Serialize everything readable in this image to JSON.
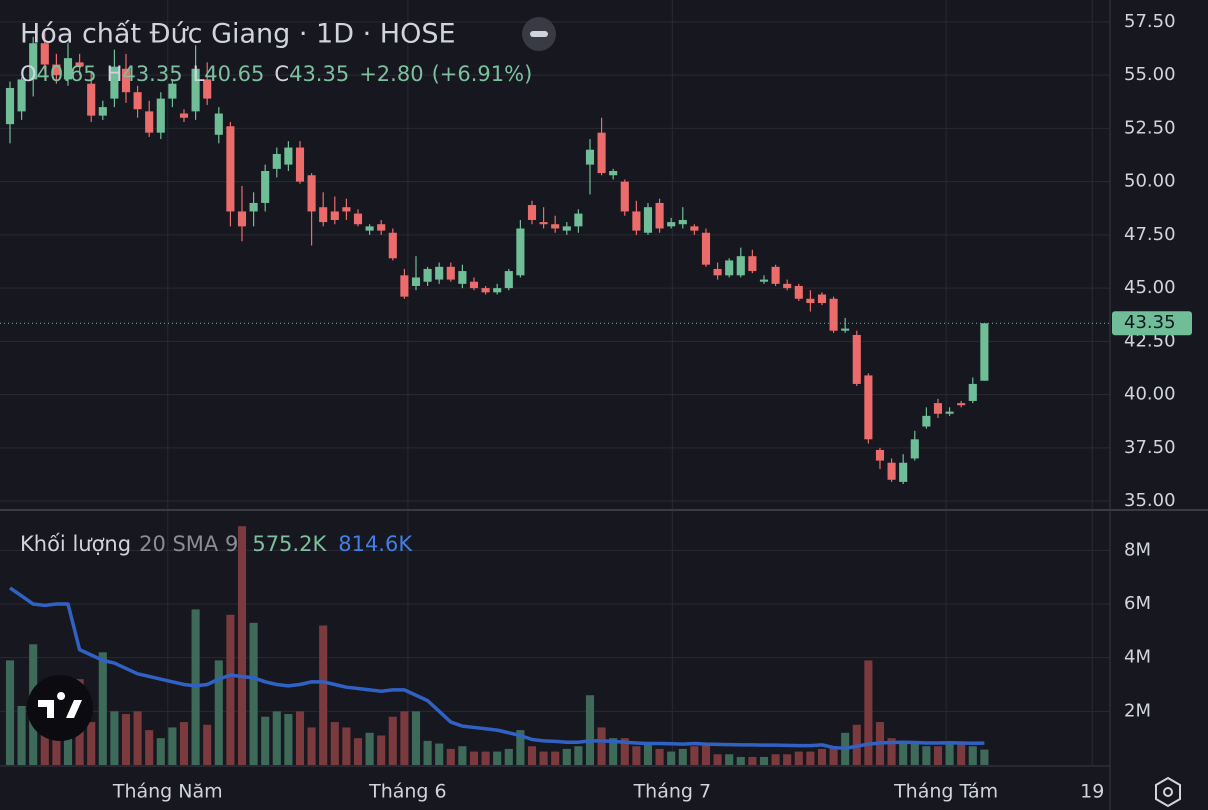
{
  "chart_data": [
    {
      "type": "candlestick",
      "title": "Hóa chất Đức Giang · 1D · HOSE",
      "legend": {
        "open_label": "O",
        "high_label": "H",
        "low_label": "L",
        "close_label": "C",
        "change": "+2.80",
        "change_pct": "(+6.91%)"
      },
      "open": [
        52.7,
        53.3,
        54.8,
        56.5,
        55.5,
        54.8,
        55.6,
        54.6,
        53.1,
        53.9,
        55.3,
        54.2,
        53.3,
        52.3,
        53.9,
        53.2,
        53.3,
        54.8,
        52.2,
        52.6,
        48.6,
        48.6,
        49.0,
        50.6,
        50.8,
        51.6,
        50.3,
        48.8,
        48.6,
        48.8,
        48.5,
        47.7,
        48.0,
        47.6,
        45.6,
        45.1,
        45.3,
        45.4,
        46.0,
        45.2,
        45.3,
        45.0,
        44.8,
        45.0,
        45.6,
        48.9,
        48.1,
        48.0,
        47.7,
        47.9,
        50.8,
        52.3,
        50.3,
        50.0,
        48.6,
        47.6,
        49.0,
        47.9,
        48.0,
        47.9,
        47.6,
        45.9,
        45.6,
        45.6,
        46.5,
        45.3,
        46.0,
        45.2,
        45.1,
        44.5,
        44.7,
        44.5,
        43.0,
        42.8,
        40.9,
        37.4,
        36.8,
        35.9,
        37.0,
        38.5,
        39.6,
        39.1,
        39.6,
        39.7,
        40.65
      ],
      "high": [
        54.7,
        54.9,
        56.8,
        57.0,
        56.0,
        56.5,
        56.0,
        55.2,
        53.8,
        56.2,
        56.0,
        54.5,
        53.8,
        54.2,
        54.8,
        53.4,
        56.4,
        55.6,
        53.5,
        52.8,
        49.8,
        49.5,
        50.8,
        51.6,
        51.9,
        51.9,
        50.4,
        49.5,
        49.3,
        49.2,
        48.7,
        48.0,
        48.2,
        47.8,
        45.9,
        46.5,
        46.0,
        46.2,
        46.2,
        46.1,
        45.5,
        45.1,
        45.2,
        45.9,
        48.2,
        49.1,
        48.8,
        48.4,
        48.1,
        48.7,
        52.0,
        53.0,
        50.6,
        50.1,
        49.1,
        49.0,
        49.2,
        48.3,
        48.8,
        48.0,
        47.8,
        46.2,
        46.4,
        46.9,
        46.8,
        45.6,
        46.1,
        45.4,
        45.2,
        44.9,
        44.8,
        44.6,
        43.6,
        43.0,
        41.0,
        37.5,
        37.0,
        37.2,
        38.3,
        39.4,
        39.8,
        39.4,
        39.7,
        40.8,
        43.35
      ],
      "low": [
        51.8,
        52.9,
        54.0,
        55.2,
        54.6,
        54.5,
        55.0,
        52.8,
        52.9,
        53.5,
        53.7,
        53.0,
        52.1,
        52.0,
        53.5,
        52.8,
        52.9,
        53.6,
        51.8,
        47.9,
        47.2,
        47.9,
        48.6,
        50.2,
        50.5,
        49.9,
        47.0,
        47.9,
        48.0,
        48.2,
        47.9,
        47.5,
        47.5,
        46.3,
        44.5,
        44.9,
        45.1,
        45.2,
        45.3,
        45.0,
        44.9,
        44.7,
        44.7,
        44.9,
        45.5,
        48.0,
        47.8,
        47.6,
        47.5,
        47.6,
        49.4,
        50.3,
        50.1,
        48.4,
        47.5,
        47.5,
        47.6,
        47.8,
        47.8,
        47.5,
        46.0,
        45.4,
        45.5,
        45.5,
        45.7,
        45.2,
        45.1,
        44.9,
        44.4,
        43.9,
        44.2,
        42.9,
        42.9,
        40.4,
        37.7,
        36.5,
        35.9,
        35.8,
        36.9,
        38.4,
        38.9,
        39.0,
        39.4,
        39.6,
        40.65
      ],
      "close": [
        54.4,
        54.8,
        56.5,
        55.5,
        55.0,
        55.8,
        55.4,
        53.1,
        53.5,
        55.4,
        54.2,
        53.4,
        52.3,
        53.9,
        54.6,
        53.0,
        55.3,
        53.9,
        53.2,
        48.6,
        47.9,
        49.0,
        50.5,
        51.3,
        51.6,
        50.0,
        48.6,
        48.1,
        48.2,
        48.6,
        48.0,
        47.9,
        47.7,
        46.4,
        44.6,
        45.5,
        45.9,
        46.0,
        45.4,
        45.8,
        45.0,
        44.8,
        45.0,
        45.8,
        47.8,
        48.2,
        48.0,
        47.8,
        47.9,
        48.5,
        51.5,
        50.4,
        50.5,
        48.6,
        47.7,
        48.8,
        47.8,
        48.1,
        48.2,
        47.7,
        46.1,
        45.6,
        46.3,
        46.5,
        45.8,
        45.4,
        45.2,
        45.0,
        44.5,
        44.3,
        44.3,
        43.0,
        43.1,
        40.5,
        37.9,
        36.9,
        36.0,
        36.8,
        37.9,
        39.0,
        39.1,
        39.2,
        39.5,
        40.5,
        43.35
      ],
      "up_color": "#6fbe98",
      "down_color": "#ec6b6b",
      "xlim": [
        -0.862,
        94.83
      ],
      "ylim": [
        34.58,
        58.53
      ],
      "yticks": [
        {
          "value": 35,
          "label": "35.00"
        },
        {
          "value": 37.5,
          "label": "37.50"
        },
        {
          "value": 40,
          "label": "40.00"
        },
        {
          "value": 42.5,
          "label": "42.50"
        },
        {
          "value": 45,
          "label": "45.00"
        },
        {
          "value": 47.5,
          "label": "47.50"
        },
        {
          "value": 50,
          "label": "50.00"
        },
        {
          "value": 52.5,
          "label": "52.50"
        },
        {
          "value": 55,
          "label": "55.00"
        },
        {
          "value": 57.5,
          "label": "57.50"
        }
      ],
      "grid": true,
      "last_price_line": true
    },
    {
      "type": "bar",
      "title": "Khối lượng",
      "subtitle": "20 SMA 9",
      "volume_label": "575.2K",
      "sma_label": "814.6K",
      "values": [
        3900000,
        2200000,
        4500000,
        1500000,
        2200000,
        1800000,
        3200000,
        1600000,
        4200000,
        2000000,
        1900000,
        2000000,
        1300000,
        1000000,
        1400000,
        1600000,
        5800000,
        1500000,
        3900000,
        5600000,
        8900000,
        5300000,
        1800000,
        2000000,
        1900000,
        2000000,
        1400000,
        5200000,
        1600000,
        1400000,
        1000000,
        1200000,
        1100000,
        1800000,
        2000000,
        2000000,
        900000,
        800000,
        600000,
        700000,
        500000,
        500000,
        500000,
        600000,
        1300000,
        700000,
        500000,
        500000,
        600000,
        700000,
        2600000,
        1400000,
        1000000,
        1000000,
        700000,
        800000,
        600000,
        500000,
        600000,
        700000,
        800000,
        400000,
        400000,
        300000,
        300000,
        300000,
        400000,
        400000,
        500000,
        500000,
        600000,
        700000,
        1200000,
        1500000,
        3900000,
        1600000,
        1000000,
        900000,
        800000,
        700000,
        700000,
        800000,
        800000,
        700000,
        575200
      ],
      "sma": {
        "color": "#2f62c4",
        "values": [
          6600000,
          6300000,
          6000000,
          5950000,
          6000000,
          6000000,
          4300000,
          4100000,
          3900000,
          3800000,
          3600000,
          3400000,
          3300000,
          3200000,
          3100000,
          3000000,
          2950000,
          3000000,
          3200000,
          3350000,
          3300000,
          3250000,
          3100000,
          3000000,
          2950000,
          3000000,
          3100000,
          3100000,
          3000000,
          2900000,
          2850000,
          2800000,
          2750000,
          2800000,
          2800000,
          2600000,
          2400000,
          2000000,
          1600000,
          1450000,
          1400000,
          1350000,
          1300000,
          1200000,
          1100000,
          950000,
          900000,
          880000,
          850000,
          850000,
          900000,
          900000,
          880000,
          850000,
          820000,
          800000,
          800000,
          790000,
          780000,
          800000,
          780000,
          770000,
          760000,
          750000,
          750000,
          740000,
          740000,
          730000,
          720000,
          720000,
          750000,
          650000,
          620000,
          700000,
          780000,
          820000,
          840000,
          850000,
          840000,
          820000,
          820000,
          830000,
          820000,
          810000,
          814600
        ]
      },
      "up_color": "#3e6b59",
      "down_color": "#7a3a3e",
      "xlim": [
        -0.862,
        94.83
      ],
      "xticks": [
        {
          "value": 13.6,
          "label": "Tháng Năm"
        },
        {
          "value": 34.3,
          "label": "Tháng 6"
        },
        {
          "value": 57.1,
          "label": "Tháng 7"
        },
        {
          "value": 80.7,
          "label": "Tháng Tám"
        },
        {
          "value": 93.3,
          "label": "19"
        }
      ],
      "ylim": [
        0,
        9430000
      ],
      "yticks": [
        {
          "value": 2000000,
          "label": "2M"
        },
        {
          "value": 4000000,
          "label": "4M"
        },
        {
          "value": 6000000,
          "label": "6M"
        },
        {
          "value": 8000000,
          "label": "8M"
        }
      ],
      "grid": true
    }
  ]
}
